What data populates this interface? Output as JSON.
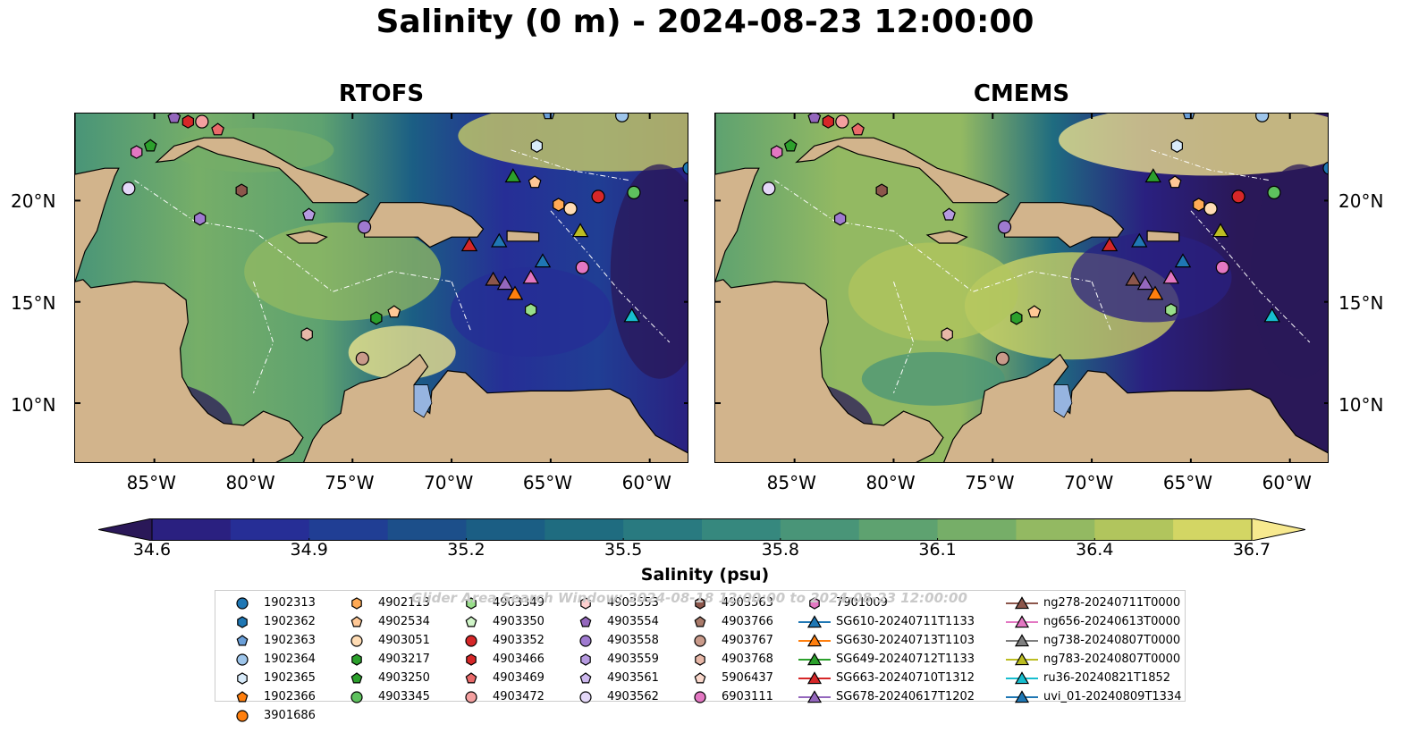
{
  "title": "Salinity (0 m) - 2024-08-23 12:00:00",
  "panels": [
    {
      "id": "rtofs",
      "title": "RTOFS"
    },
    {
      "id": "cmems",
      "title": "CMEMS"
    }
  ],
  "lon_ticks": [
    "85°W",
    "80°W",
    "75°W",
    "70°W",
    "65°W",
    "60°W"
  ],
  "lat_ticks": [
    "20°N",
    "15°N",
    "10°N"
  ],
  "map_extent": {
    "lon": [
      -89,
      -58
    ],
    "lat": [
      7,
      24.3
    ]
  },
  "colorbar": {
    "label": "Salinity (psu)",
    "ticks": [
      "34.6",
      "34.9",
      "35.2",
      "35.5",
      "35.8",
      "36.1",
      "36.4",
      "36.7"
    ],
    "range": [
      34.6,
      36.7
    ],
    "colors": [
      "#2a1858",
      "#2a2080",
      "#262e96",
      "#203e94",
      "#1c4f8a",
      "#1b5e84",
      "#1f6c80",
      "#297a80",
      "#36887e",
      "#499578",
      "#5ea270",
      "#76ae68",
      "#93b962",
      "#b1c55d",
      "#d3d664",
      "#f7e98f"
    ]
  },
  "watermark": "Glider Area Search Window: 2024-08-18 12:00:00 to 2024-08-23 12:00:00",
  "land_color": "#d2b48c",
  "lake_color": "#96b4e0",
  "legend": {
    "columns": [
      [
        {
          "label": "1902313",
          "marker": "circle",
          "color": "#1f77b4"
        },
        {
          "label": "1902362",
          "marker": "hexagon",
          "color": "#1f77b4"
        },
        {
          "label": "1902363",
          "marker": "pentagon",
          "color": "#6a9fd8"
        },
        {
          "label": "1902364",
          "marker": "circle",
          "color": "#9ec5ea"
        },
        {
          "label": "1902365",
          "marker": "hexagon",
          "color": "#d8ebfa"
        },
        {
          "label": "1902366",
          "marker": "pentagon",
          "color": "#ff7f0e"
        },
        {
          "label": "3901686",
          "marker": "circle",
          "color": "#ff7f0e"
        }
      ],
      [
        {
          "label": "4902113",
          "marker": "hexagon",
          "color": "#ffaa55"
        },
        {
          "label": "4902534",
          "marker": "pentagon",
          "color": "#ffc896"
        },
        {
          "label": "4903051",
          "marker": "circle",
          "color": "#ffdcb4"
        },
        {
          "label": "4903217",
          "marker": "hexagon",
          "color": "#2ca02c"
        },
        {
          "label": "4903250",
          "marker": "pentagon",
          "color": "#2ca02c"
        },
        {
          "label": "4903345",
          "marker": "circle",
          "color": "#5ec15e"
        }
      ],
      [
        {
          "label": "4903349",
          "marker": "hexagon",
          "color": "#98df8a"
        },
        {
          "label": "4903350",
          "marker": "pentagon",
          "color": "#d0f5c8"
        },
        {
          "label": "4903352",
          "marker": "circle",
          "color": "#d62728"
        },
        {
          "label": "4903466",
          "marker": "hexagon",
          "color": "#d62728"
        },
        {
          "label": "4903469",
          "marker": "pentagon",
          "color": "#ea6a6a"
        },
        {
          "label": "4903472",
          "marker": "circle",
          "color": "#f4a0a0"
        }
      ],
      [
        {
          "label": "4903553",
          "marker": "hexagon",
          "color": "#ffd0d0"
        },
        {
          "label": "4903554",
          "marker": "pentagon",
          "color": "#9467bd"
        },
        {
          "label": "4903558",
          "marker": "circle",
          "color": "#9f7ad0"
        },
        {
          "label": "4903559",
          "marker": "hexagon",
          "color": "#b69ae0"
        },
        {
          "label": "4903561",
          "marker": "pentagon",
          "color": "#cdb8ee"
        },
        {
          "label": "4903562",
          "marker": "circle",
          "color": "#e4d8f8"
        }
      ],
      [
        {
          "label": "4903563",
          "marker": "hexagon",
          "color": "#8c564b"
        },
        {
          "label": "4903766",
          "marker": "pentagon",
          "color": "#a97a6a"
        },
        {
          "label": "4903767",
          "marker": "circle",
          "color": "#c99a8a"
        },
        {
          "label": "4903768",
          "marker": "hexagon",
          "color": "#e8b8a8"
        },
        {
          "label": "5906437",
          "marker": "pentagon",
          "color": "#fad8cc"
        },
        {
          "label": "6903111",
          "marker": "circle",
          "color": "#e377c2"
        }
      ],
      [
        {
          "label": "7901009",
          "marker": "hexagon",
          "color": "#e377c2"
        },
        {
          "label": "SG610-20240711T1133",
          "marker": "triangle",
          "color": "#1f77b4"
        },
        {
          "label": "SG630-20240713T1103",
          "marker": "triangle",
          "color": "#ff7f0e"
        },
        {
          "label": "SG649-20240712T1133",
          "marker": "triangle",
          "color": "#2ca02c"
        },
        {
          "label": "SG663-20240710T1312",
          "marker": "triangle",
          "color": "#d62728"
        },
        {
          "label": "SG678-20240617T1202",
          "marker": "triangle",
          "color": "#9467bd"
        }
      ],
      [
        {
          "label": "ng278-20240711T0000",
          "marker": "triangle",
          "color": "#8c564b"
        },
        {
          "label": "ng656-20240613T0000",
          "marker": "triangle",
          "color": "#e377c2"
        },
        {
          "label": "ng738-20240807T0000",
          "marker": "triangle",
          "color": "#7f7f7f"
        },
        {
          "label": "ng783-20240807T0000",
          "marker": "triangle",
          "color": "#bcbd22"
        },
        {
          "label": "ru36-20240821T1852",
          "marker": "triangle",
          "color": "#17becf"
        },
        {
          "label": "uvi_01-20240809T1334",
          "marker": "triangle",
          "color": "#1f77b4"
        }
      ]
    ]
  },
  "observations": [
    {
      "lon": -84.0,
      "lat": 24.1,
      "marker": "pentagon",
      "color": "#9467bd"
    },
    {
      "lon": -83.3,
      "lat": 23.9,
      "marker": "hexagon",
      "color": "#d62728"
    },
    {
      "lon": -82.6,
      "lat": 23.9,
      "marker": "circle",
      "color": "#f4a0a0"
    },
    {
      "lon": -81.8,
      "lat": 23.5,
      "marker": "pentagon",
      "color": "#ea6a6a"
    },
    {
      "lon": -85.9,
      "lat": 22.4,
      "marker": "hexagon",
      "color": "#e377c2"
    },
    {
      "lon": -85.2,
      "lat": 22.7,
      "marker": "pentagon",
      "color": "#2ca02c"
    },
    {
      "lon": -86.3,
      "lat": 20.6,
      "marker": "circle",
      "color": "#e4d8f8"
    },
    {
      "lon": -80.6,
      "lat": 20.5,
      "marker": "hexagon",
      "color": "#8c564b"
    },
    {
      "lon": -82.7,
      "lat": 19.1,
      "marker": "hexagon",
      "color": "#9f7ad0"
    },
    {
      "lon": -77.2,
      "lat": 19.3,
      "marker": "pentagon",
      "color": "#b69ae0"
    },
    {
      "lon": -74.4,
      "lat": 18.7,
      "marker": "circle",
      "color": "#9f7ad0"
    },
    {
      "lon": -65.7,
      "lat": 22.7,
      "marker": "hexagon",
      "color": "#d8ebfa"
    },
    {
      "lon": -65.8,
      "lat": 20.9,
      "marker": "pentagon",
      "color": "#ffc896"
    },
    {
      "lon": -64.6,
      "lat": 19.8,
      "marker": "hexagon",
      "color": "#ffaa55"
    },
    {
      "lon": -64.0,
      "lat": 19.6,
      "marker": "circle",
      "color": "#ffdcb4"
    },
    {
      "lon": -62.6,
      "lat": 20.2,
      "marker": "circle",
      "color": "#d62728"
    },
    {
      "lon": -60.8,
      "lat": 20.4,
      "marker": "circle",
      "color": "#5ec15e"
    },
    {
      "lon": -63.4,
      "lat": 16.7,
      "marker": "circle",
      "color": "#e377c2"
    },
    {
      "lon": -66.0,
      "lat": 14.6,
      "marker": "hexagon",
      "color": "#98df8a"
    },
    {
      "lon": -73.8,
      "lat": 14.2,
      "marker": "hexagon",
      "color": "#2ca02c"
    },
    {
      "lon": -72.9,
      "lat": 14.5,
      "marker": "pentagon",
      "color": "#ffc896"
    },
    {
      "lon": -77.3,
      "lat": 13.4,
      "marker": "hexagon",
      "color": "#e8b8a8"
    },
    {
      "lon": -74.5,
      "lat": 12.2,
      "marker": "circle",
      "color": "#c99a8a"
    },
    {
      "lon": -65.1,
      "lat": 24.3,
      "marker": "pentagon",
      "color": "#6a9fd8"
    },
    {
      "lon": -61.4,
      "lat": 24.2,
      "marker": "circle",
      "color": "#9ec5ea"
    },
    {
      "lon": -58.0,
      "lat": 21.6,
      "marker": "circle",
      "color": "#1f77b4"
    },
    {
      "lon": -66.9,
      "lat": 21.2,
      "marker": "triangle",
      "color": "#2ca02c"
    },
    {
      "lon": -69.1,
      "lat": 17.8,
      "marker": "triangle",
      "color": "#d62728"
    },
    {
      "lon": -67.6,
      "lat": 18.0,
      "marker": "triangle",
      "color": "#1f77b4"
    },
    {
      "lon": -63.5,
      "lat": 18.5,
      "marker": "triangle",
      "color": "#bcbd22"
    },
    {
      "lon": -65.4,
      "lat": 17.0,
      "marker": "triangle",
      "color": "#1f77b4"
    },
    {
      "lon": -66.0,
      "lat": 16.2,
      "marker": "triangle",
      "color": "#e377c2"
    },
    {
      "lon": -67.9,
      "lat": 16.1,
      "marker": "triangle",
      "color": "#8c564b"
    },
    {
      "lon": -67.3,
      "lat": 15.9,
      "marker": "triangle",
      "color": "#9467bd"
    },
    {
      "lon": -66.8,
      "lat": 15.4,
      "marker": "triangle",
      "color": "#ff7f0e"
    },
    {
      "lon": -60.9,
      "lat": 14.3,
      "marker": "triangle",
      "color": "#17becf"
    }
  ]
}
